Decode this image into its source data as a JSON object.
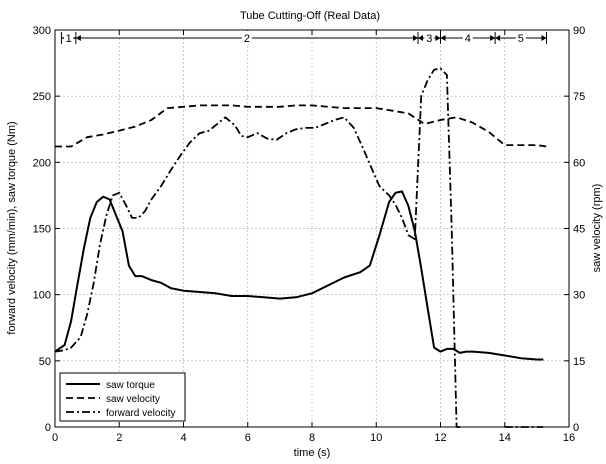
{
  "chart_data": {
    "type": "line",
    "title": "Tube Cutting-Off (Real Data)",
    "xlabel": "time (s)",
    "ylabel_left": "forward velocity (mm/min), saw torque (Nm)",
    "ylabel_right": "saw velocity (rpm)",
    "xlim": [
      0,
      16
    ],
    "ylim_left": [
      0,
      300
    ],
    "ylim_right": [
      0,
      90
    ],
    "xticks": [
      0,
      2,
      4,
      6,
      8,
      10,
      12,
      14,
      16
    ],
    "yticks_left": [
      0,
      50,
      100,
      150,
      200,
      250,
      300
    ],
    "yticks_right": [
      0,
      15,
      30,
      45,
      60,
      75,
      90
    ],
    "grid": true,
    "legend_position": "bottom-left",
    "phases": [
      {
        "label": "1",
        "start": 0.2,
        "end": 0.65
      },
      {
        "label": "2",
        "start": 0.65,
        "end": 11.3
      },
      {
        "label": "3",
        "start": 11.3,
        "end": 12.0
      },
      {
        "label": "4",
        "start": 12.0,
        "end": 13.7
      },
      {
        "label": "5",
        "start": 13.7,
        "end": 15.3
      }
    ],
    "series": [
      {
        "name": "saw torque",
        "axis": "left",
        "style": "solid",
        "x": [
          0,
          0.3,
          0.5,
          0.7,
          0.9,
          1.1,
          1.3,
          1.5,
          1.7,
          1.9,
          2.1,
          2.3,
          2.5,
          2.7,
          3.0,
          3.3,
          3.6,
          4.0,
          4.5,
          5.0,
          5.5,
          6.0,
          6.5,
          7.0,
          7.5,
          8.0,
          8.5,
          9.0,
          9.5,
          9.8,
          10.1,
          10.4,
          10.6,
          10.8,
          11.0,
          11.2,
          11.4,
          11.6,
          11.8,
          12.0,
          12.2,
          12.4,
          12.6,
          12.8,
          13.0,
          13.5,
          14.0,
          14.5,
          15.0,
          15.2
        ],
        "y": [
          57,
          62,
          80,
          108,
          135,
          158,
          170,
          174,
          172,
          160,
          148,
          122,
          114,
          114,
          111,
          109,
          105,
          103,
          102,
          101,
          99,
          99,
          98,
          97,
          98,
          101,
          107,
          113,
          117,
          122,
          145,
          170,
          177,
          178,
          167,
          148,
          120,
          90,
          60,
          57,
          59,
          59,
          56,
          57,
          57,
          56,
          54,
          52,
          51,
          51
        ]
      },
      {
        "name": "saw velocity",
        "axis": "right",
        "style": "dashed",
        "x": [
          0,
          0.5,
          1.0,
          1.5,
          2.0,
          2.5,
          3.0,
          3.5,
          4.0,
          4.5,
          5.0,
          5.5,
          6.0,
          6.5,
          7.0,
          7.5,
          8.0,
          8.5,
          9.0,
          9.5,
          10.0,
          10.5,
          11.0,
          11.5,
          12.0,
          12.5,
          13.0,
          13.5,
          14.0,
          14.5,
          15.0,
          15.3
        ],
        "y": [
          63.6,
          63.6,
          65.7,
          66.3,
          67.2,
          68.1,
          69.6,
          72.3,
          72.6,
          72.9,
          72.9,
          72.9,
          72.6,
          72.6,
          72.6,
          72.9,
          72.9,
          72.6,
          72.3,
          72.3,
          72.3,
          71.7,
          71.1,
          68.7,
          69.6,
          70.2,
          69.0,
          66.9,
          63.9,
          63.9,
          63.9,
          63.6
        ]
      },
      {
        "name": "forward velocity",
        "axis": "left",
        "style": "dashdot",
        "x": [
          0,
          0.3,
          0.5,
          0.8,
          1.0,
          1.2,
          1.4,
          1.6,
          1.8,
          2.0,
          2.2,
          2.4,
          2.6,
          2.8,
          3.0,
          3.3,
          3.6,
          3.9,
          4.2,
          4.5,
          4.8,
          5.0,
          5.3,
          5.6,
          5.8,
          6.0,
          6.3,
          6.6,
          6.9,
          7.2,
          7.5,
          7.8,
          8.1,
          8.4,
          8.7,
          9.0,
          9.3,
          9.6,
          9.9,
          10.1,
          10.4,
          10.6,
          10.8,
          11.0,
          11.2,
          11.4,
          11.6,
          11.8,
          12.0,
          12.2,
          12.35,
          12.5,
          12.65,
          null,
          14.0,
          14.5,
          15.0,
          15.2
        ],
        "y": [
          57,
          58,
          60,
          68,
          85,
          108,
          138,
          160,
          175,
          177,
          168,
          158,
          158,
          163,
          172,
          182,
          194,
          205,
          215,
          222,
          224,
          228,
          234,
          228,
          220,
          219,
          222,
          218,
          217,
          222,
          225,
          226,
          226,
          229,
          232,
          234,
          226,
          210,
          193,
          182,
          175,
          168,
          158,
          145,
          142,
          250,
          262,
          270,
          271,
          266,
          150,
          0,
          0,
          null,
          0,
          0,
          0,
          0
        ]
      }
    ]
  }
}
